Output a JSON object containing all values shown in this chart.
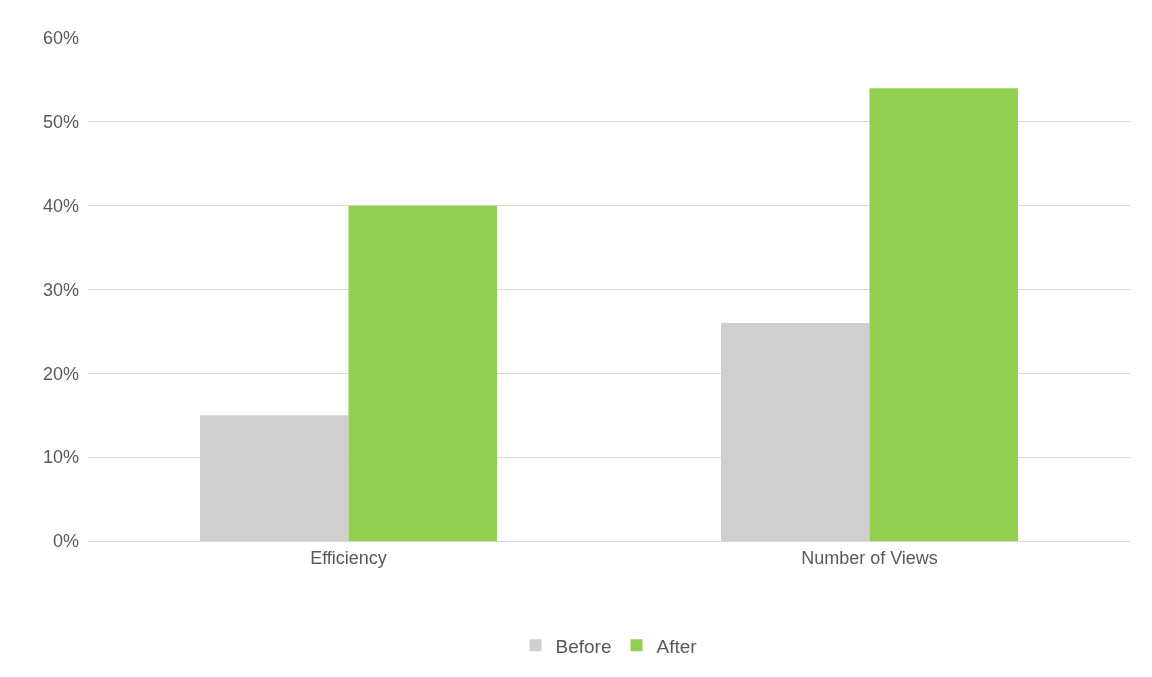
{
  "chart_data": {
    "type": "bar",
    "categories": [
      "Efficiency",
      "Number of Views"
    ],
    "series": [
      {
        "name": "Before",
        "color": "#d0cece",
        "values": [
          15,
          26
        ]
      },
      {
        "name": "After",
        "color": "#92d050",
        "values": [
          40,
          54
        ]
      }
    ],
    "ylim": [
      0,
      60
    ],
    "yticks": [
      {
        "value": 0,
        "label": "0%"
      },
      {
        "value": 10,
        "label": "10%"
      },
      {
        "value": 20,
        "label": "20%"
      },
      {
        "value": 30,
        "label": "30%"
      },
      {
        "value": 40,
        "label": "40%"
      },
      {
        "value": 50,
        "label": "50%"
      },
      {
        "value": 60,
        "label": "60%"
      }
    ],
    "grid": "y",
    "legend": "bottom"
  }
}
